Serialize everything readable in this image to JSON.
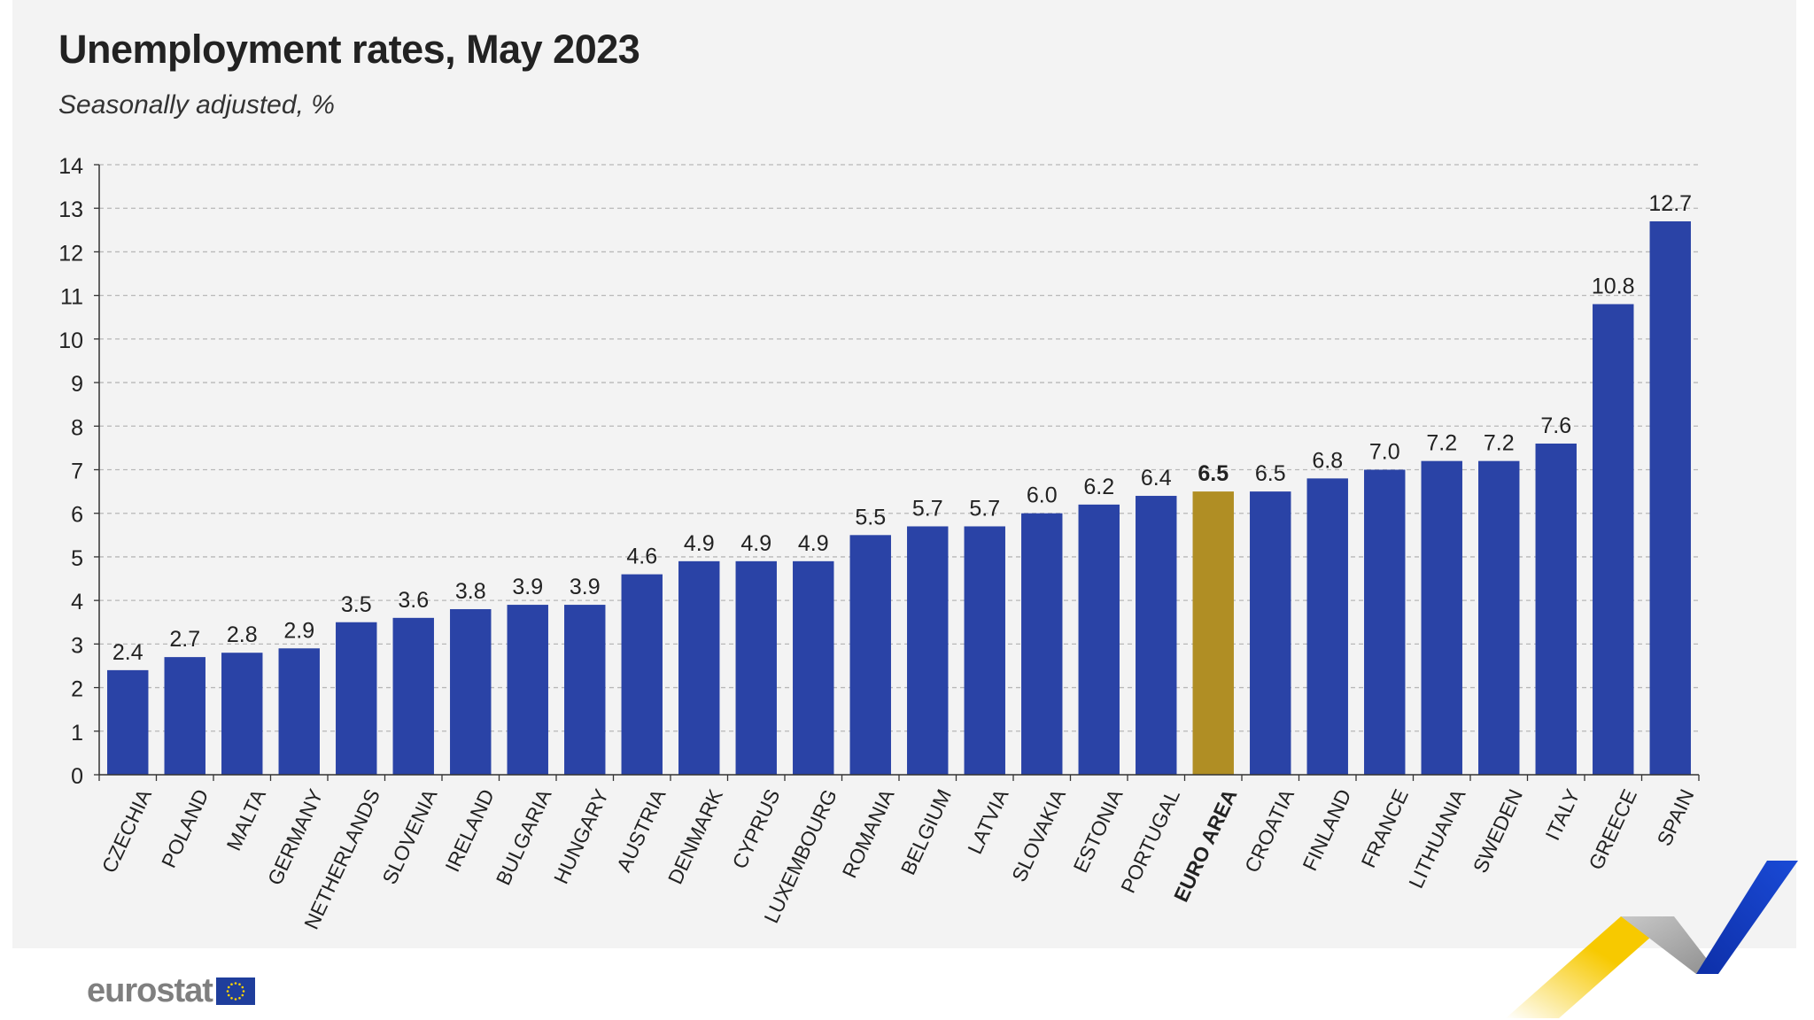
{
  "title": "Unemployment rates, May 2023",
  "subtitle": "Seasonally adjusted, %",
  "logo": {
    "text": "eurostat",
    "flag_icon": "eu-flag-icon"
  },
  "colors": {
    "bar": "#2a43a6",
    "highlight": "#b08e24",
    "background": "#f3f3f3",
    "accent_yellow": "#f7c900",
    "accent_blue": "#173ec4",
    "accent_grey": "#9a9a9a"
  },
  "chart_data": {
    "type": "bar",
    "title": "Unemployment rates, May 2023",
    "subtitle": "Seasonally adjusted, %",
    "categories": [
      "CZECHIA",
      "POLAND",
      "MALTA",
      "GERMANY",
      "NETHERLANDS",
      "SLOVENIA",
      "IRELAND",
      "BULGARIA",
      "HUNGARY",
      "AUSTRIA",
      "DENMARK",
      "CYPRUS",
      "LUXEMBOURG",
      "ROMANIA",
      "BELGIUM",
      "LATVIA",
      "SLOVAKIA",
      "ESTONIA",
      "PORTUGAL",
      "EURO AREA",
      "CROATIA",
      "FINLAND",
      "FRANCE",
      "LITHUANIA",
      "SWEDEN",
      "ITALY",
      "GREECE",
      "SPAIN"
    ],
    "values": [
      2.4,
      2.7,
      2.8,
      2.9,
      3.5,
      3.6,
      3.8,
      3.9,
      3.9,
      4.6,
      4.9,
      4.9,
      4.9,
      5.5,
      5.7,
      5.7,
      6.0,
      6.2,
      6.4,
      6.5,
      6.5,
      6.8,
      7.0,
      7.2,
      7.2,
      7.6,
      10.8,
      12.7
    ],
    "value_labels": [
      "2.4",
      "2.7",
      "2.8",
      "2.9",
      "3.5",
      "3.6",
      "3.8",
      "3.9",
      "3.9",
      "4.6",
      "4.9",
      "4.9",
      "4.9",
      "5.5",
      "5.7",
      "5.7",
      "6.0",
      "6.2",
      "6.4",
      "6.5",
      "6.5",
      "6.8",
      "7.0",
      "7.2",
      "7.2",
      "7.6",
      "10.8",
      "12.7"
    ],
    "highlight_category": "EURO AREA",
    "ylim": [
      0,
      14
    ],
    "yticks": [
      0,
      1,
      2,
      3,
      4,
      5,
      6,
      7,
      8,
      9,
      10,
      11,
      12,
      13,
      14
    ],
    "grid": true,
    "xlabel": "",
    "ylabel": ""
  }
}
